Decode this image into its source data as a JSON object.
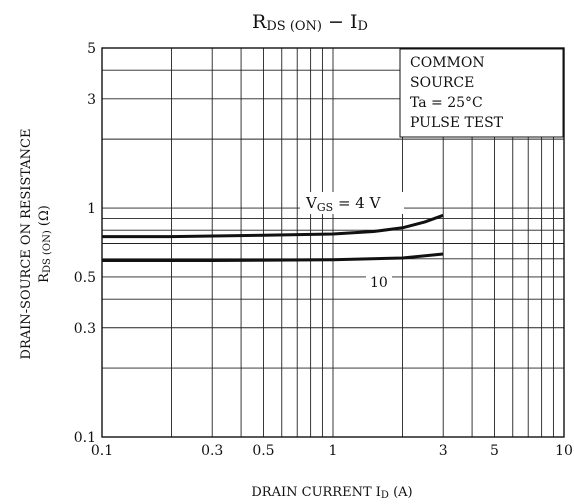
{
  "chart_data": {
    "type": "line",
    "title": {
      "main": "R",
      "main_sub": "DS (ON)",
      "sep": " − ",
      "tail": "I",
      "tail_sub": "D"
    },
    "xlabel": {
      "main": "DRAIN CURRENT  I",
      "sub": "D",
      "tail": "  (A)"
    },
    "ylabel": {
      "line1": "DRAIN-SOURCE ON RESISTANCE",
      "line2_main": "R",
      "line2_sub": "DS (ON)",
      "line2_tail": "  (Ω)"
    },
    "x_scale": "log",
    "y_scale": "log",
    "xlim": [
      0.1,
      10
    ],
    "ylim": [
      0.1,
      5
    ],
    "grid": true,
    "x_ticks": [
      {
        "value": 0.1,
        "label": "0.1"
      },
      {
        "value": 0.3,
        "label": "0.3"
      },
      {
        "value": 0.5,
        "label": "0.5"
      },
      {
        "value": 1,
        "label": "1"
      },
      {
        "value": 3,
        "label": "3"
      },
      {
        "value": 5,
        "label": "5"
      },
      {
        "value": 10,
        "label": "10"
      }
    ],
    "y_ticks": [
      {
        "value": 0.1,
        "label": "0.1"
      },
      {
        "value": 0.3,
        "label": "0.3"
      },
      {
        "value": 0.5,
        "label": "0.5"
      },
      {
        "value": 1,
        "label": "1"
      },
      {
        "value": 3,
        "label": "3"
      },
      {
        "value": 5,
        "label": "5"
      }
    ],
    "series": [
      {
        "label_main": "V",
        "label_sub": "GS",
        "label_tail": " = 4 V",
        "x": [
          0.1,
          0.2,
          0.5,
          1,
          1.5,
          2,
          2.5,
          3
        ],
        "y": [
          0.75,
          0.75,
          0.76,
          0.77,
          0.79,
          0.82,
          0.87,
          0.93
        ]
      },
      {
        "label_main": "10",
        "label_sub": "",
        "label_tail": "",
        "x": [
          0.1,
          0.3,
          1,
          2,
          3
        ],
        "y": [
          0.59,
          0.59,
          0.595,
          0.605,
          0.63
        ]
      }
    ],
    "annotation_box": [
      "COMMON",
      "SOURCE",
      "Ta = 25°C",
      "PULSE TEST"
    ]
  }
}
